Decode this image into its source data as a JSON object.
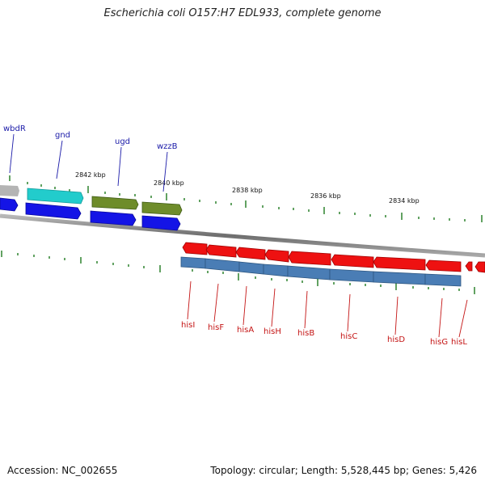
{
  "title": "Escherichia coli O157:H7 EDL933, complete genome",
  "footer": {
    "accession": "Accession: NC_002655",
    "summary": "Topology: circular; Length: 5,528,445 bp; Genes: 5,426"
  },
  "colors": {
    "backbone": "#8c8c8c",
    "tick": "#1f7a1f",
    "forward_gene_label": "#1a1aa8",
    "reverse_gene_label": "#c41414",
    "cds_forward": "#1414e6",
    "cds_reverse": "#4a7db5",
    "gene_red": "#ee1111",
    "gene_cyan": "#22cccc",
    "gene_olive": "#6e8c2a",
    "gene_gray": "#b4b4b4"
  },
  "scale_labels": [
    "2842 kbp",
    "2840 kbp",
    "2838 kbp",
    "2836 kbp",
    "2834 kbp"
  ],
  "forward_genes": [
    {
      "name": "wbdR",
      "color": "gene_gray"
    },
    {
      "name": "gnd",
      "color": "gene_cyan"
    },
    {
      "name": "ugd",
      "color": "gene_olive"
    },
    {
      "name": "wzzB",
      "color": "gene_olive"
    }
  ],
  "reverse_genes": [
    {
      "name": "hisI"
    },
    {
      "name": "hisF"
    },
    {
      "name": "hisA"
    },
    {
      "name": "hisH"
    },
    {
      "name": "hisB"
    },
    {
      "name": "hisC"
    },
    {
      "name": "hisD"
    },
    {
      "name": "hisG"
    },
    {
      "name": "hisL"
    }
  ]
}
